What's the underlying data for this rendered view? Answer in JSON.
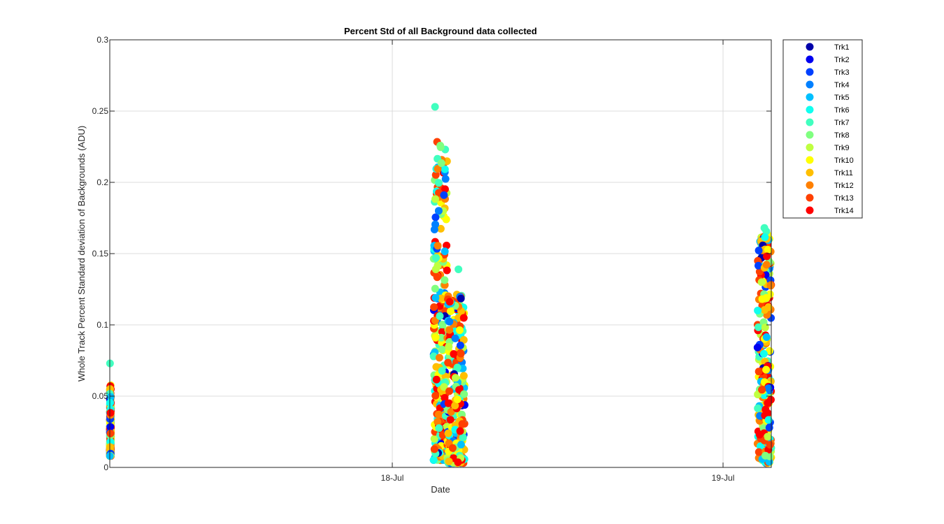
{
  "chart_data": {
    "type": "scatter",
    "title": "Percent Std of all Background data collected",
    "xlabel": "Date",
    "ylabel": "Whole Track Percent Standard deviation of Backgrounds (ADU)",
    "xlim": [
      "2018-07-17 03:30",
      "2018-07-19 03:30"
    ],
    "ylim": [
      0,
      0.3
    ],
    "x_ticks": [
      {
        "value": "2018-07-18 00:00",
        "label": "18-Jul"
      },
      {
        "value": "2018-07-19 00:00",
        "label": "19-Jul"
      }
    ],
    "y_ticks": [
      {
        "value": 0,
        "label": "0"
      },
      {
        "value": 0.05,
        "label": "0.05"
      },
      {
        "value": 0.1,
        "label": "0.1"
      },
      {
        "value": 0.15,
        "label": "0.15"
      },
      {
        "value": 0.2,
        "label": "0.2"
      },
      {
        "value": 0.25,
        "label": "0.25"
      },
      {
        "value": 0.3,
        "label": "0.3"
      }
    ],
    "grid": true,
    "legend_position": "outside-top-right",
    "series": [
      {
        "name": "Trk1",
        "color": "#0000AA"
      },
      {
        "name": "Trk2",
        "color": "#0000F0"
      },
      {
        "name": "Trk3",
        "color": "#0040FF"
      },
      {
        "name": "Trk4",
        "color": "#0080FF"
      },
      {
        "name": "Trk5",
        "color": "#00C0FF"
      },
      {
        "name": "Trk6",
        "color": "#10FFEF"
      },
      {
        "name": "Trk7",
        "color": "#40FFBF"
      },
      {
        "name": "Trk8",
        "color": "#80FF80"
      },
      {
        "name": "Trk9",
        "color": "#BFFF40"
      },
      {
        "name": "Trk10",
        "color": "#FFFF00"
      },
      {
        "name": "Trk11",
        "color": "#FFBF00"
      },
      {
        "name": "Trk12",
        "color": "#FF8000"
      },
      {
        "name": "Trk13",
        "color": "#FF4000"
      },
      {
        "name": "Trk14",
        "color": "#FF0000"
      }
    ],
    "clusters": [
      {
        "x_start": "2018-07-17 03:30",
        "x_end": "2018-07-17 03:35",
        "y_min": 0.008,
        "y_max": 0.058,
        "peak": {
          "x": "2018-07-17 03:31",
          "y": 0.073
        }
      },
      {
        "x_start": "2018-07-18 03:00",
        "x_end": "2018-07-18 04:00",
        "y_min": 0.005,
        "y_max": 0.23,
        "peak": {
          "x": "2018-07-18 03:06",
          "y": 0.253
        }
      },
      {
        "x_start": "2018-07-18 04:00",
        "x_end": "2018-07-18 05:15",
        "y_min": 0.003,
        "y_max": 0.123,
        "peak": {
          "x": "2018-07-18 04:48",
          "y": 0.139
        }
      },
      {
        "x_start": "2018-07-19 02:30",
        "x_end": "2018-07-19 03:30",
        "y_min": 0.003,
        "y_max": 0.168,
        "peak": {
          "x": "2018-07-19 03:00",
          "y": 0.168
        }
      }
    ]
  }
}
